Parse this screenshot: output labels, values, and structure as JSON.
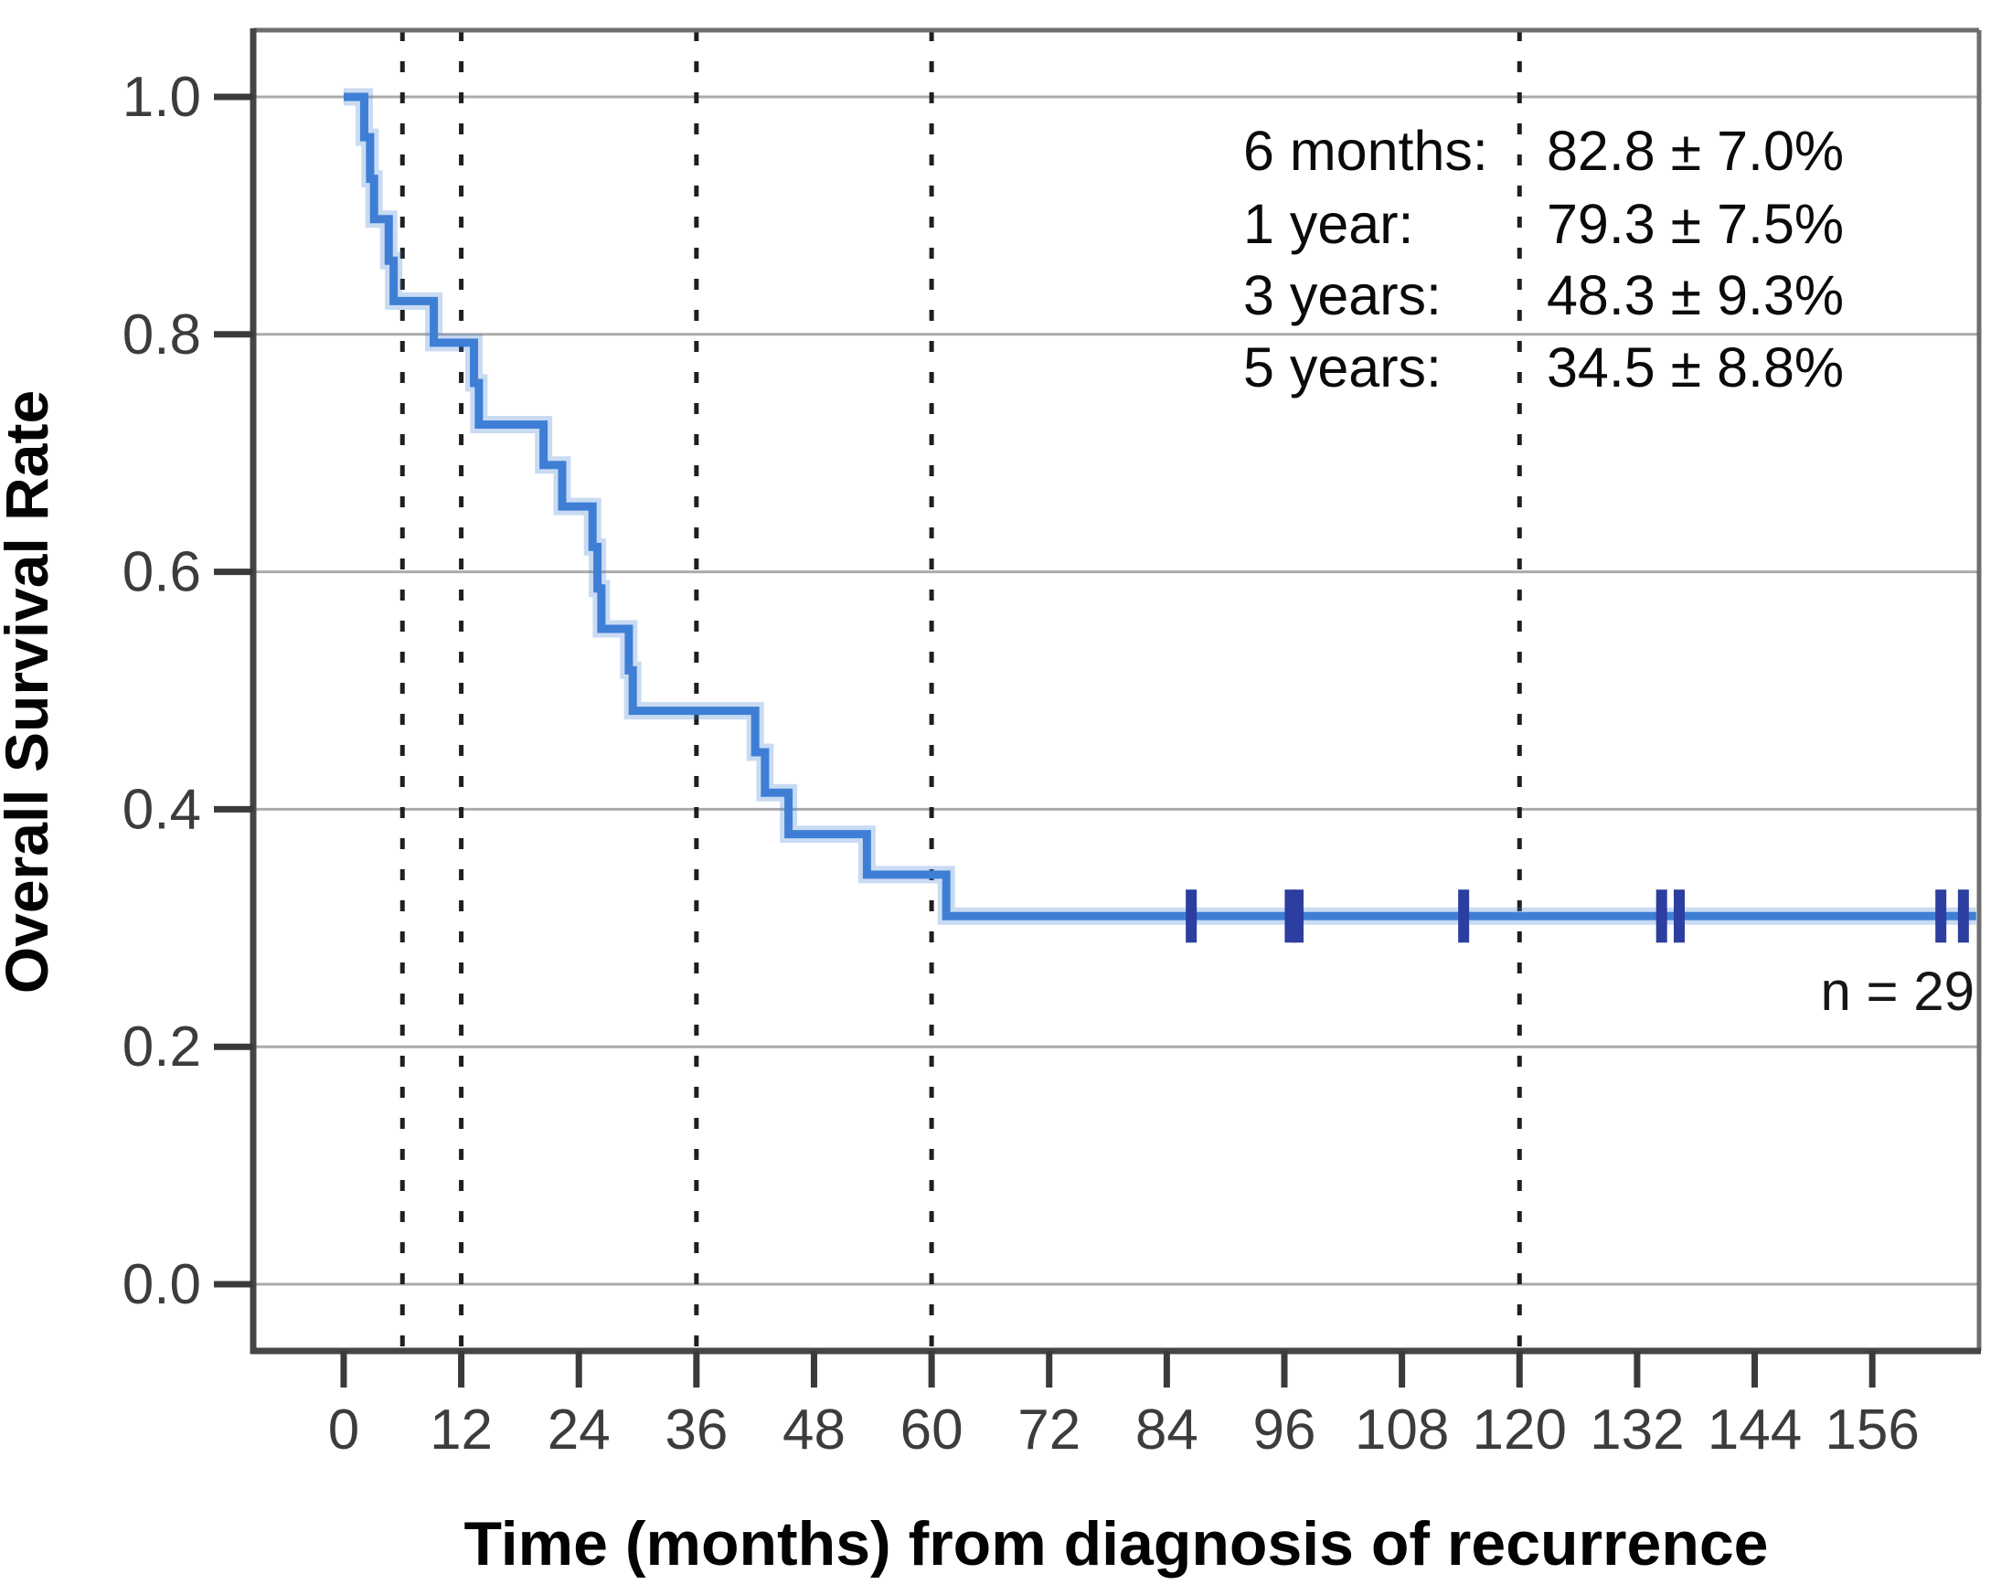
{
  "chart_data": {
    "type": "line",
    "subtype": "kaplan-meier-step-curve",
    "title": "",
    "xlabel": "Time (months) from diagnosis of recurrence",
    "ylabel": "Overall Survival Rate",
    "n_label": "n = 29",
    "x_ticks": [
      0,
      12,
      24,
      36,
      48,
      60,
      72,
      84,
      96,
      108,
      120,
      132,
      144,
      156
    ],
    "y_ticks": [
      "1.0",
      "0.8",
      "0.6",
      "0.4",
      "0.2",
      "0.0"
    ],
    "y_tick_values": [
      1.0,
      0.8,
      0.6,
      0.4,
      0.2,
      0.0
    ],
    "xlim": [
      -9.23,
      166.9
    ],
    "ylim": [
      -0.0562,
      1.0562
    ],
    "grid": "horizontal-only",
    "reference_lines_months": [
      6,
      12,
      36,
      60,
      120
    ],
    "series": [
      {
        "name": "Overall survival",
        "steps": [
          [
            0,
            1.0
          ],
          [
            2.1,
            0.966
          ],
          [
            2.7,
            0.931
          ],
          [
            3.1,
            0.897
          ],
          [
            4.6,
            0.862
          ],
          [
            5.1,
            0.828
          ],
          [
            9.2,
            0.793
          ],
          [
            13.3,
            0.759
          ],
          [
            13.8,
            0.724
          ],
          [
            20.4,
            0.69
          ],
          [
            22.3,
            0.655
          ],
          [
            25.4,
            0.621
          ],
          [
            25.9,
            0.586
          ],
          [
            26.3,
            0.552
          ],
          [
            29.1,
            0.517
          ],
          [
            29.5,
            0.483
          ],
          [
            42.0,
            0.448
          ],
          [
            43.0,
            0.414
          ],
          [
            45.4,
            0.379
          ],
          [
            53.4,
            0.345
          ],
          [
            61.5,
            0.31
          ]
        ],
        "curve_end_month": 166.6,
        "censor_marks_months": [
          86.5,
          96.6,
          97.4,
          114.3,
          134.5,
          136.3,
          163.0,
          165.3
        ],
        "censor_value": 0.31
      }
    ],
    "annotations": {
      "rows": [
        {
          "label": "6 months:",
          "value": "82.8 ± 7.0%"
        },
        {
          "label": "1 year:",
          "value": "79.3 ± 7.5%"
        },
        {
          "label": "3 years:",
          "value": "48.3 ± 9.3%"
        },
        {
          "label": "5 years:",
          "value": "34.5 ± 8.8%"
        }
      ]
    },
    "colors": {
      "curve": "#3e7fd5",
      "curve_halo": "#3e7fd5",
      "censor_mark": "#2c3e9f",
      "gridline": "#ababab",
      "dashed_reference": "#1f1f1f",
      "border_dark": "#454545",
      "border_light": "#6e6e6e",
      "tick": "#3a3a3a",
      "background": "#ffffff"
    }
  }
}
